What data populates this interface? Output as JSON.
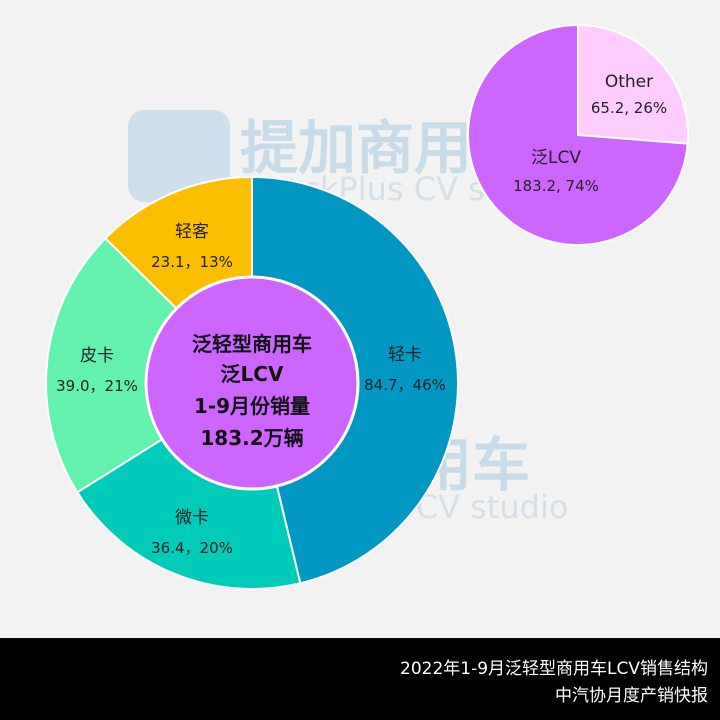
{
  "watermark": {
    "brand": "提加商用车",
    "sub": "TruckPlus CV studio"
  },
  "chart_data": [
    {
      "type": "pie",
      "style": "donut",
      "center_text": [
        "泛轻型商用车",
        "泛LCV",
        "1-9月份销量",
        "183.2万辆"
      ],
      "slices": [
        {
          "label": "轻卡",
          "value": 84.7,
          "value_text": "84.7，46%",
          "percent": 46,
          "color": "#0098c2"
        },
        {
          "label": "微卡",
          "value": 36.4,
          "value_text": "36.4，20%",
          "percent": 20,
          "color": "#00cbb8"
        },
        {
          "label": "皮卡",
          "value": 39.0,
          "value_text": "39.0，21%",
          "percent": 21,
          "color": "#62f2ad"
        },
        {
          "label": "轻客",
          "value": 23.1,
          "value_text": "23.1，13%",
          "percent": 13,
          "color": "#fbbf00"
        }
      ],
      "center_color": "#cc66ff"
    },
    {
      "type": "pie",
      "slices": [
        {
          "label": "Other",
          "value": 65.2,
          "value_text": "65.2, 26%",
          "percent": 26,
          "color": "#ffccff"
        },
        {
          "label": "泛LCV",
          "value": 183.2,
          "value_text": "183.2, 74%",
          "percent": 74,
          "color": "#cc66ff"
        }
      ]
    }
  ],
  "footer": {
    "title": "2022年1-9月泛轻型商用车LCV销售结构",
    "source": "中汽协月度产销快报"
  }
}
